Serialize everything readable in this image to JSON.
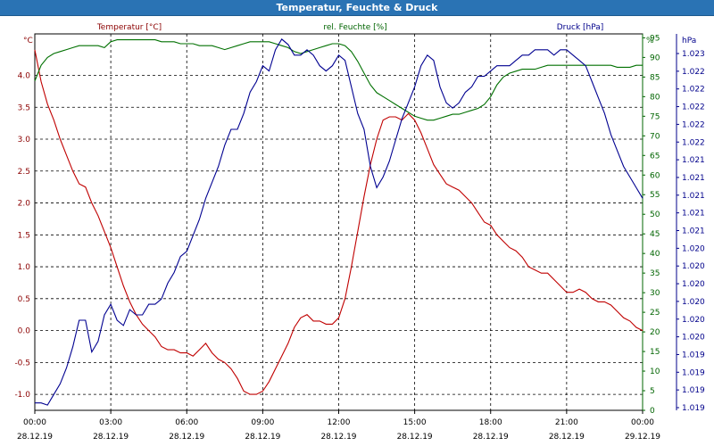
{
  "window": {
    "title": "Temperatur, Feuchte & Druck"
  },
  "colors": {
    "temperature": "#c00000",
    "humidity": "#007000",
    "pressure": "#000090",
    "grid": "#000000",
    "axis_left": "#8b0000",
    "axis_right1": "#006400",
    "axis_right2": "#00008b"
  },
  "chart_data": {
    "type": "line",
    "grid": true,
    "legend": "none",
    "series": [
      {
        "name": "Temperatur [°C]",
        "axis": "left",
        "unit": "°C",
        "x": [
          0,
          0.25,
          0.5,
          0.75,
          1,
          1.25,
          1.5,
          1.75,
          2,
          2.25,
          2.5,
          2.75,
          3,
          3.25,
          3.5,
          3.75,
          4,
          4.25,
          4.5,
          4.75,
          5,
          5.25,
          5.5,
          5.75,
          6,
          6.25,
          6.5,
          6.75,
          7,
          7.25,
          7.5,
          7.75,
          8,
          8.25,
          8.5,
          8.75,
          9,
          9.25,
          9.5,
          9.75,
          10,
          10.25,
          10.5,
          10.75,
          11,
          11.25,
          11.5,
          11.75,
          12,
          12.25,
          12.5,
          12.75,
          13,
          13.25,
          13.5,
          13.75,
          14,
          14.25,
          14.5,
          14.75,
          15,
          15.25,
          15.5,
          15.75,
          16,
          16.25,
          16.5,
          16.75,
          17,
          17.25,
          17.5,
          17.75,
          18,
          18.25,
          18.5,
          18.75,
          19,
          19.25,
          19.5,
          19.75,
          20,
          20.25,
          20.5,
          20.75,
          21,
          21.25,
          21.5,
          21.75,
          22,
          22.25,
          22.5,
          22.75,
          23,
          23.25,
          23.5,
          23.75,
          24
        ],
        "values": [
          4.4,
          3.9,
          3.55,
          3.3,
          3.0,
          2.75,
          2.5,
          2.3,
          2.25,
          2.0,
          1.8,
          1.55,
          1.3,
          1.0,
          0.7,
          0.45,
          0.25,
          0.1,
          0.0,
          -0.1,
          -0.25,
          -0.3,
          -0.3,
          -0.35,
          -0.35,
          -0.4,
          -0.3,
          -0.2,
          -0.35,
          -0.45,
          -0.5,
          -0.6,
          -0.75,
          -0.95,
          -1.0,
          -1.0,
          -0.95,
          -0.8,
          -0.6,
          -0.4,
          -0.2,
          0.05,
          0.2,
          0.25,
          0.15,
          0.15,
          0.1,
          0.1,
          0.2,
          0.5,
          1.0,
          1.55,
          2.1,
          2.6,
          3.0,
          3.3,
          3.35,
          3.35,
          3.3,
          3.4,
          3.3,
          3.1,
          2.85,
          2.6,
          2.45,
          2.3,
          2.25,
          2.2,
          2.1,
          2.0,
          1.85,
          1.7,
          1.65,
          1.5,
          1.4,
          1.3,
          1.25,
          1.15,
          1.0,
          0.95,
          0.9,
          0.9,
          0.8,
          0.7,
          0.6,
          0.6,
          0.65,
          0.6,
          0.5,
          0.45,
          0.45,
          0.4,
          0.3,
          0.2,
          0.15,
          0.05,
          0.0
        ]
      },
      {
        "name": "rel. Feuchte [%]",
        "axis": "right1",
        "unit": "%",
        "x": [
          0,
          0.25,
          0.5,
          0.75,
          1,
          1.25,
          1.5,
          1.75,
          2,
          2.25,
          2.5,
          2.75,
          3,
          3.25,
          3.5,
          3.75,
          4,
          4.25,
          4.5,
          4.75,
          5,
          5.25,
          5.5,
          5.75,
          6,
          6.25,
          6.5,
          6.75,
          7,
          7.25,
          7.5,
          7.75,
          8,
          8.25,
          8.5,
          8.75,
          9,
          9.25,
          9.5,
          9.75,
          10,
          10.25,
          10.5,
          10.75,
          11,
          11.25,
          11.5,
          11.75,
          12,
          12.25,
          12.5,
          12.75,
          13,
          13.25,
          13.5,
          13.75,
          14,
          14.25,
          14.5,
          14.75,
          15,
          15.25,
          15.5,
          15.75,
          16,
          16.25,
          16.5,
          16.75,
          17,
          17.25,
          17.5,
          17.75,
          18,
          18.25,
          18.5,
          18.75,
          19,
          19.25,
          19.5,
          19.75,
          20,
          20.25,
          20.5,
          20.75,
          21,
          21.25,
          21.5,
          21.75,
          22,
          22.25,
          22.5,
          22.75,
          23,
          23.25,
          23.5,
          23.75,
          24
        ],
        "values": [
          84,
          88,
          90,
          91,
          91.5,
          92,
          92.5,
          93,
          93,
          93,
          93,
          92.5,
          94,
          94.5,
          94.5,
          94.5,
          94.5,
          94.5,
          94.5,
          94.5,
          94,
          94,
          94,
          93.5,
          93.5,
          93.5,
          93,
          93,
          93,
          92.5,
          92,
          92.5,
          93,
          93.5,
          94,
          94,
          94,
          94,
          93.5,
          93,
          92.5,
          91.5,
          91,
          91.5,
          92,
          92.5,
          93,
          93.5,
          93.5,
          93,
          91.5,
          89,
          86,
          83,
          81,
          80,
          79,
          78,
          77,
          76,
          75,
          74.5,
          74,
          74,
          74.5,
          75,
          75.5,
          75.5,
          76,
          76.5,
          77,
          78,
          80,
          83,
          85,
          86,
          86.5,
          87,
          87,
          87,
          87.5,
          88,
          88,
          88,
          88,
          88,
          88,
          88,
          88,
          88,
          88,
          88,
          87.5,
          87.5,
          87.5,
          88,
          88
        ]
      },
      {
        "name": "Druck [hPa]",
        "axis": "right2",
        "unit": "hPa",
        "x": [
          0,
          0.25,
          0.5,
          0.75,
          1,
          1.25,
          1.5,
          1.75,
          2,
          2.25,
          2.5,
          2.75,
          3,
          3.25,
          3.5,
          3.75,
          4,
          4.25,
          4.5,
          4.75,
          5,
          5.25,
          5.5,
          5.75,
          6,
          6.25,
          6.5,
          6.75,
          7,
          7.25,
          7.5,
          7.75,
          8,
          8.25,
          8.5,
          8.75,
          9,
          9.25,
          9.5,
          9.75,
          10,
          10.25,
          10.5,
          10.75,
          11,
          11.25,
          11.5,
          11.75,
          12,
          12.25,
          12.5,
          12.75,
          13,
          13.25,
          13.5,
          13.75,
          14,
          14.25,
          14.5,
          14.75,
          15,
          15.25,
          15.5,
          15.75,
          16,
          16.25,
          16.5,
          16.75,
          17,
          17.25,
          17.5,
          17.75,
          18,
          18.25,
          18.5,
          18.75,
          19,
          19.25,
          19.5,
          19.75,
          20,
          20.25,
          20.5,
          20.75,
          21,
          21.25,
          21.5,
          21.75,
          22,
          22.25,
          22.5,
          22.75,
          23,
          23.25,
          23.5,
          23.75,
          24
        ],
        "values": [
          1019.02,
          1019.02,
          1019.0,
          1019.1,
          1019.2,
          1019.35,
          1019.55,
          1019.8,
          1019.8,
          1019.5,
          1019.6,
          1019.85,
          1019.95,
          1019.8,
          1019.75,
          1019.9,
          1019.85,
          1019.85,
          1019.95,
          1019.95,
          1020.0,
          1020.15,
          1020.25,
          1020.4,
          1020.45,
          1020.6,
          1020.75,
          1020.95,
          1021.1,
          1021.25,
          1021.45,
          1021.6,
          1021.6,
          1021.75,
          1021.95,
          1022.05,
          1022.2,
          1022.15,
          1022.35,
          1022.45,
          1022.4,
          1022.3,
          1022.3,
          1022.35,
          1022.3,
          1022.2,
          1022.15,
          1022.2,
          1022.3,
          1022.25,
          1022.0,
          1021.75,
          1021.6,
          1021.25,
          1021.05,
          1021.15,
          1021.3,
          1021.5,
          1021.7,
          1021.85,
          1022.0,
          1022.2,
          1022.3,
          1022.25,
          1022.0,
          1021.85,
          1021.8,
          1021.85,
          1021.95,
          1022.0,
          1022.1,
          1022.1,
          1022.15,
          1022.2,
          1022.2,
          1022.2,
          1022.25,
          1022.3,
          1022.3,
          1022.35,
          1022.35,
          1022.35,
          1022.3,
          1022.35,
          1022.35,
          1022.3,
          1022.25,
          1022.2,
          1022.05,
          1021.9,
          1021.75,
          1021.55,
          1021.4,
          1021.25,
          1021.15,
          1021.05,
          1020.95
        ]
      }
    ],
    "left_axis": {
      "label": "°C",
      "ylim": [
        -1.25,
        4.65
      ],
      "ticks": [
        -1.0,
        -0.5,
        0.0,
        0.5,
        1.0,
        1.5,
        2.0,
        2.5,
        3.0,
        3.5,
        4.0
      ],
      "tick_labels": [
        "-1.0",
        "-0.5",
        "0.0",
        "0.5",
        "1.0",
        "1.5",
        "2.0",
        "2.5",
        "3.0",
        "3.5",
        "4.0"
      ]
    },
    "right1_axis": {
      "label": "%",
      "ylim": [
        0,
        96
      ],
      "ticks": [
        0,
        5,
        10,
        15,
        20,
        25,
        30,
        35,
        40,
        45,
        50,
        55,
        60,
        65,
        70,
        75,
        80,
        85,
        90,
        95
      ],
      "tick_labels": [
        "0",
        "5",
        "10",
        "15",
        "20",
        "25",
        "30",
        "35",
        "40",
        "45",
        "50",
        "55",
        "60",
        "65",
        "70",
        "75",
        "80",
        "85",
        "90",
        "95"
      ]
    },
    "right2_axis": {
      "label": "hPa",
      "ylim": [
        1018.95,
        1022.5
      ],
      "tick_labels": [
        "1.019",
        "1.019",
        "1.019",
        "1.019",
        "1.020",
        "1.020",
        "1.020",
        "1.020",
        "1.020",
        "1.020",
        "1.021",
        "1.021",
        "1.021",
        "1.021",
        "1.021",
        "1.022",
        "1.022",
        "1.022",
        "1.022",
        "1.022",
        "1.023"
      ]
    },
    "x_axis": {
      "xlim": [
        0,
        24
      ],
      "ticks": [
        0,
        3,
        6,
        9,
        12,
        15,
        18,
        21,
        24
      ],
      "time_labels": [
        "00:00",
        "03:00",
        "06:00",
        "09:00",
        "12:00",
        "15:00",
        "18:00",
        "21:00",
        "00:00"
      ],
      "date_labels": [
        "28.12.19",
        "28.12.19",
        "28.12.19",
        "28.12.19",
        "28.12.19",
        "28.12.19",
        "28.12.19",
        "28.12.19",
        "29.12.19"
      ]
    },
    "axis_titles": {
      "left": "Temperatur [°C]",
      "right1": "rel. Feuchte [%]",
      "right2": "Druck [hPa]"
    }
  }
}
